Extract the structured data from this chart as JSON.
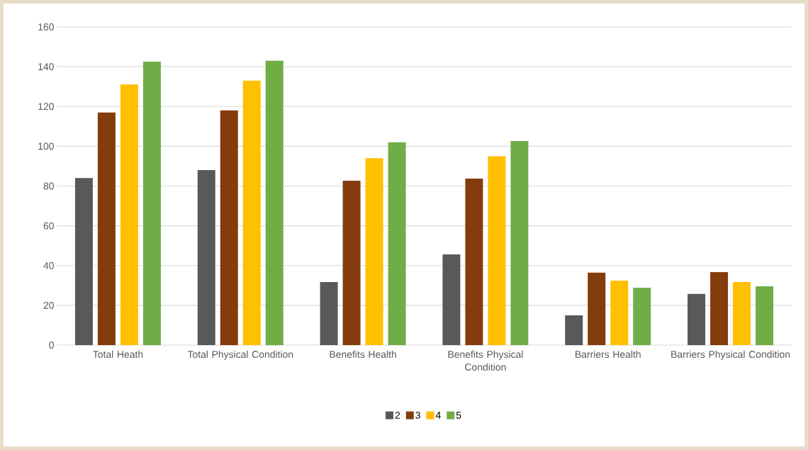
{
  "chart_data": {
    "type": "bar",
    "categories": [
      "Total Heath",
      "Total Physical Condition",
      "Benefits Health",
      "Benefits Physical Condition",
      "Barriers Health",
      "Barriers Physical Condition"
    ],
    "series": [
      {
        "name": "2",
        "color": "#595959",
        "values": [
          84,
          88,
          31.7,
          45.6,
          15,
          25.7
        ]
      },
      {
        "name": "3",
        "color": "#843c0c",
        "values": [
          117,
          118,
          82.7,
          83.7,
          36.4,
          36.7
        ]
      },
      {
        "name": "4",
        "color": "#ffc000",
        "values": [
          131,
          133,
          94,
          95,
          32.4,
          31.7
        ]
      },
      {
        "name": "5",
        "color": "#70ad47",
        "values": [
          142.5,
          143,
          102,
          102.6,
          28.9,
          29.6
        ]
      }
    ],
    "ylim": [
      0,
      160
    ],
    "yticks": [
      0,
      20,
      40,
      60,
      80,
      100,
      120,
      140,
      160
    ],
    "grid": "y",
    "legend": "bottom"
  }
}
